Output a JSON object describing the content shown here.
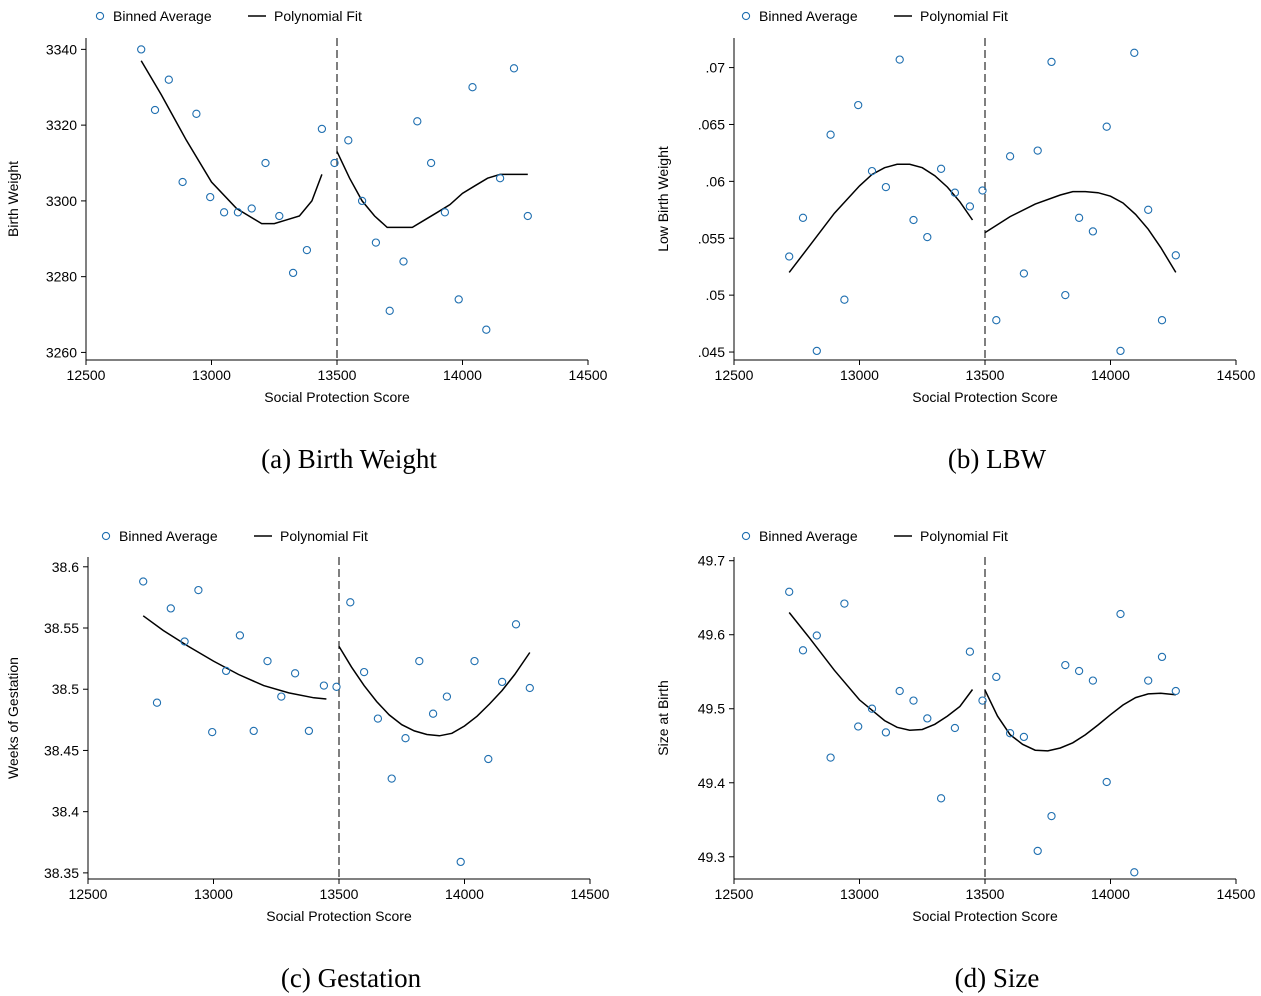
{
  "colors": {
    "marker": "#1f6fb0",
    "fit": "#000000",
    "axis": "#000000",
    "cutoff": "#555555"
  },
  "legend": {
    "binned_label": "Binned Average",
    "fit_label": "Polynomial Fit"
  },
  "shared": {
    "xlabel": "Social Protection Score",
    "xticks": [
      "12500",
      "13000",
      "13500",
      "14000",
      "14500"
    ],
    "xlim": [
      12500,
      14500
    ],
    "cutoff": 13500,
    "bins_x": [
      12720,
      12775,
      12830,
      12885,
      12940,
      12995,
      13050,
      13105,
      13160,
      13215,
      13270,
      13325,
      13380,
      13440,
      13490,
      13545,
      13600,
      13655,
      13710,
      13765,
      13820,
      13875,
      13930,
      13985,
      14040,
      14095,
      14150,
      14205,
      14260
    ]
  },
  "chart_data": [
    {
      "type": "scatter",
      "caption": "(a) Birth Weight",
      "ylabel": "Birth Weight",
      "yticks": [
        "3260",
        "3280",
        "3300",
        "3320",
        "3340"
      ],
      "yticks_val": [
        3260,
        3280,
        3300,
        3320,
        3340
      ],
      "ylim": [
        3258,
        3343
      ],
      "grid": false,
      "legend_position": "top-left",
      "series": [
        {
          "values": [
            3340,
            3324,
            3332,
            3305,
            3323,
            3301,
            3297,
            3297,
            3298,
            3310,
            3296,
            3281,
            3287,
            3319,
            3310,
            3316,
            3300,
            3289,
            3271,
            3284,
            3321,
            3310,
            3297,
            3274,
            3330,
            3266,
            3306,
            3335,
            3296
          ]
        },
        {
          "name": "fit-left",
          "x": [
            12720,
            12800,
            12900,
            13000,
            13100,
            13200,
            13250,
            13300,
            13350,
            13400,
            13440
          ],
          "values": [
            3337,
            3328,
            3316,
            3305,
            3298,
            3294,
            3294,
            3295,
            3296,
            3300,
            3307
          ]
        },
        {
          "name": "fit-right",
          "x": [
            13500,
            13550,
            13600,
            13650,
            13700,
            13750,
            13800,
            13850,
            13900,
            13950,
            14000,
            14050,
            14100,
            14150,
            14200,
            14260
          ],
          "values": [
            3313,
            3306,
            3300,
            3296,
            3293,
            3293,
            3293,
            3295,
            3297,
            3299,
            3302,
            3304,
            3306,
            3307,
            3307,
            3307
          ]
        }
      ]
    },
    {
      "type": "scatter",
      "caption": "(b) LBW",
      "ylabel": "Low Birth Weight",
      "yticks": [
        ".045",
        ".05",
        ".055",
        ".06",
        ".065",
        ".07"
      ],
      "yticks_val": [
        0.045,
        0.05,
        0.055,
        0.06,
        0.065,
        0.07
      ],
      "ylim": [
        0.0443,
        0.0726
      ],
      "grid": false,
      "legend_position": "top-left",
      "series": [
        {
          "values": [
            0.0534,
            0.0568,
            0.0451,
            0.0641,
            0.0496,
            0.0667,
            0.0609,
            0.0595,
            0.0707,
            0.0566,
            0.0551,
            0.0611,
            0.059,
            0.0578,
            0.0592,
            0.0478,
            0.0622,
            0.0519,
            0.0627,
            0.0705,
            0.05,
            0.0568,
            0.0556,
            0.0648,
            0.0451,
            0.0713,
            0.0575,
            0.0478,
            0.0535
          ]
        },
        {
          "name": "fit-left",
          "x": [
            12720,
            12800,
            12900,
            13000,
            13050,
            13100,
            13150,
            13200,
            13250,
            13300,
            13350,
            13400,
            13450
          ],
          "values": [
            0.052,
            0.0543,
            0.0572,
            0.0596,
            0.0606,
            0.0612,
            0.0615,
            0.0615,
            0.0612,
            0.0605,
            0.0595,
            0.0582,
            0.0566
          ]
        },
        {
          "name": "fit-right",
          "x": [
            13500,
            13600,
            13700,
            13800,
            13850,
            13900,
            13950,
            14000,
            14050,
            14100,
            14150,
            14200,
            14260
          ],
          "values": [
            0.0555,
            0.0569,
            0.058,
            0.0588,
            0.0591,
            0.0591,
            0.059,
            0.0587,
            0.0581,
            0.0571,
            0.0558,
            0.0542,
            0.052
          ]
        }
      ]
    },
    {
      "type": "scatter",
      "caption": "(c) Gestation",
      "ylabel": "Weeks of Gestation",
      "yticks": [
        "38.35",
        "38.4",
        "38.45",
        "38.5",
        "38.55",
        "38.6"
      ],
      "yticks_val": [
        38.35,
        38.4,
        38.45,
        38.5,
        38.55,
        38.6
      ],
      "ylim": [
        38.345,
        38.608
      ],
      "grid": false,
      "legend_position": "top-left",
      "series": [
        {
          "values": [
            38.588,
            38.489,
            38.566,
            38.539,
            38.581,
            38.465,
            38.515,
            38.544,
            38.466,
            38.523,
            38.494,
            38.513,
            38.466,
            38.503,
            38.502,
            38.571,
            38.514,
            38.476,
            38.427,
            38.46,
            38.523,
            38.48,
            38.494,
            38.359,
            38.523,
            38.443,
            38.506,
            38.553,
            38.501
          ]
        },
        {
          "name": "fit-left",
          "x": [
            12720,
            12800,
            12900,
            13000,
            13100,
            13200,
            13300,
            13400,
            13450
          ],
          "values": [
            38.56,
            38.548,
            38.535,
            38.523,
            38.512,
            38.503,
            38.497,
            38.493,
            38.492
          ]
        },
        {
          "name": "fit-right",
          "x": [
            13500,
            13550,
            13600,
            13650,
            13700,
            13750,
            13800,
            13850,
            13900,
            13950,
            14000,
            14050,
            14100,
            14150,
            14200,
            14260
          ],
          "values": [
            38.535,
            38.518,
            38.503,
            38.49,
            38.479,
            38.471,
            38.466,
            38.463,
            38.462,
            38.464,
            38.47,
            38.478,
            38.488,
            38.499,
            38.512,
            38.53
          ]
        }
      ]
    },
    {
      "type": "scatter",
      "caption": "(d) Size",
      "ylabel": "Size at Birth",
      "yticks": [
        "49.3",
        "49.4",
        "49.5",
        "49.6",
        "49.7"
      ],
      "yticks_val": [
        49.3,
        49.4,
        49.5,
        49.6,
        49.7
      ],
      "ylim": [
        49.27,
        49.705
      ],
      "grid": false,
      "legend_position": "top-left",
      "series": [
        {
          "values": [
            49.658,
            49.579,
            49.599,
            49.434,
            49.642,
            49.476,
            49.5,
            49.468,
            49.524,
            49.511,
            49.487,
            49.379,
            49.474,
            49.577,
            49.511,
            49.543,
            49.467,
            49.462,
            49.308,
            49.355,
            49.559,
            49.551,
            49.538,
            49.401,
            49.628,
            49.279,
            49.538,
            49.57,
            49.524
          ]
        },
        {
          "name": "fit-left",
          "x": [
            12720,
            12800,
            12900,
            13000,
            13100,
            13150,
            13200,
            13250,
            13300,
            13350,
            13400,
            13450
          ],
          "values": [
            49.63,
            49.596,
            49.552,
            49.512,
            49.484,
            49.475,
            49.471,
            49.472,
            49.479,
            49.49,
            49.503,
            49.526
          ]
        },
        {
          "name": "fit-right",
          "x": [
            13500,
            13550,
            13600,
            13650,
            13700,
            13750,
            13800,
            13850,
            13900,
            13950,
            14000,
            14050,
            14100,
            14150,
            14200,
            14260
          ],
          "values": [
            49.525,
            49.49,
            49.465,
            49.452,
            49.444,
            49.443,
            49.447,
            49.454,
            49.465,
            49.478,
            49.492,
            49.505,
            49.515,
            49.52,
            49.521,
            49.519
          ]
        }
      ]
    }
  ]
}
